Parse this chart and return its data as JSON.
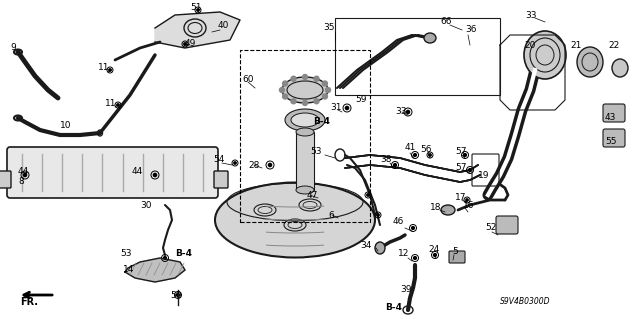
{
  "bg_color": "#ffffff",
  "fig_width": 6.4,
  "fig_height": 3.19,
  "dpi": 100,
  "diagram_code": "S9V4B0300D",
  "line_color": "#1a1a1a",
  "label_fontsize": 6.5,
  "bold_fontsize": 6.5
}
